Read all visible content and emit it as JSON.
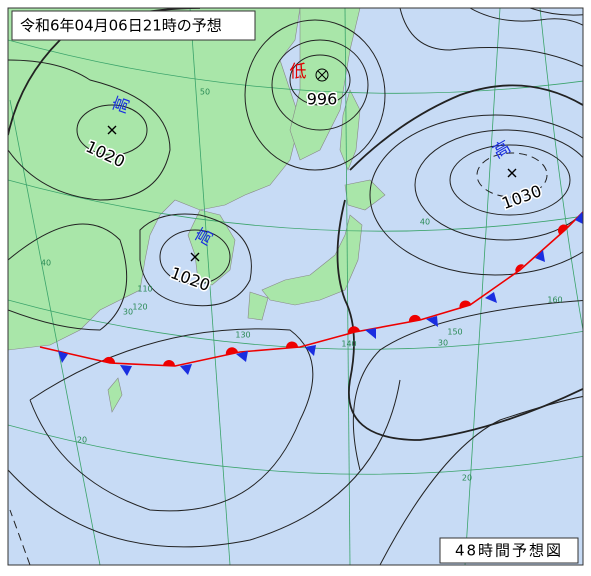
{
  "header": {
    "title": "令和6年04月06日21時の予想"
  },
  "footer": {
    "label": "48時間予想図"
  },
  "systems": [
    {
      "kind": "低",
      "pressure": "996"
    },
    {
      "kind": "高",
      "pressure": "1020"
    },
    {
      "kind": "高",
      "pressure": "1020"
    },
    {
      "kind": "高",
      "pressure": "1030"
    }
  ],
  "grid_labels": [
    "50",
    "40",
    "40",
    "30",
    "30",
    "20",
    "20",
    "110",
    "120",
    "130",
    "140",
    "150",
    "160"
  ]
}
